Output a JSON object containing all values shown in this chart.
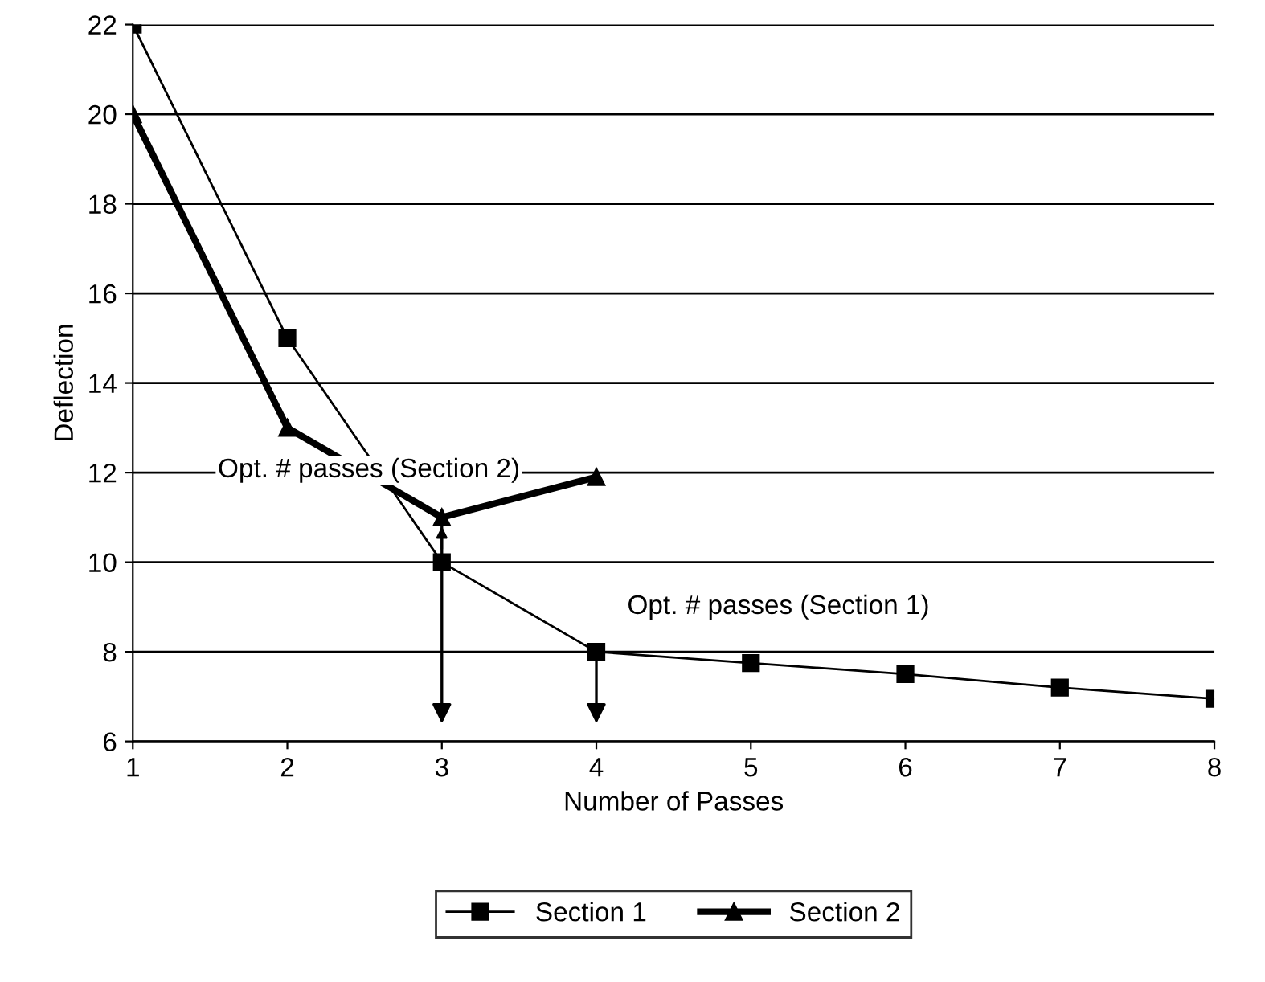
{
  "chart_data": {
    "type": "line",
    "xlabel": "Number of Passes",
    "ylabel": "Deflection",
    "xlim": [
      1,
      8
    ],
    "xticks": [
      1,
      2,
      3,
      4,
      5,
      6,
      7,
      8
    ],
    "ylim": [
      6,
      22
    ],
    "yticks": [
      6,
      8,
      10,
      12,
      14,
      16,
      18,
      20,
      22
    ],
    "grid": "y",
    "legend": "bottom",
    "line_style": "solid",
    "series": [
      {
        "name": "Section 1",
        "color": "#000000",
        "marker": "square",
        "x": [
          1,
          2,
          3,
          4,
          5,
          6,
          7,
          8
        ],
        "values": [
          22,
          15,
          10,
          8,
          7.75,
          7.5,
          7.2,
          6.95
        ]
      },
      {
        "name": "Section 2",
        "color": "#000000",
        "marker": "triangle",
        "x": [
          1,
          2,
          3,
          4
        ],
        "values": [
          20,
          13,
          11,
          11.9
        ]
      }
    ],
    "annotations": [
      {
        "text": "Opt. # passes (Section 2)",
        "x": 3,
        "y": 11
      },
      {
        "text": "Opt. # passes (Section 1)",
        "x": 4,
        "y": 8
      }
    ]
  }
}
